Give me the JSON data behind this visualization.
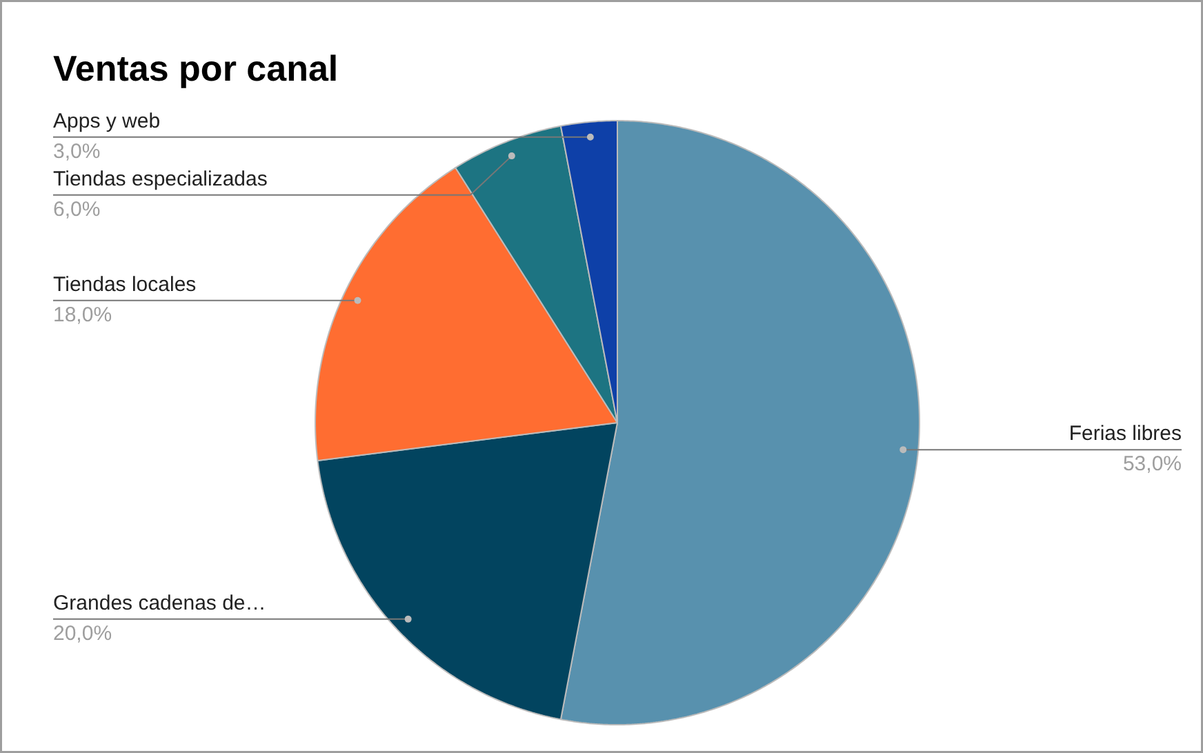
{
  "chart_data": {
    "type": "pie",
    "title": "Ventas por canal",
    "categories": [
      "Ferias libres",
      "Grandes cadenas de…",
      "Tiendas locales",
      "Tiendas especializadas",
      "Apps y web"
    ],
    "values": [
      53,
      20,
      18,
      6,
      3
    ],
    "colors": [
      "#5891ae",
      "#02445f",
      "#ff6d31",
      "#1d7482",
      "#0e40a8"
    ],
    "value_labels": [
      "53,0%",
      "20,0%",
      "18,0%",
      "6,0%",
      "3,0%"
    ]
  }
}
